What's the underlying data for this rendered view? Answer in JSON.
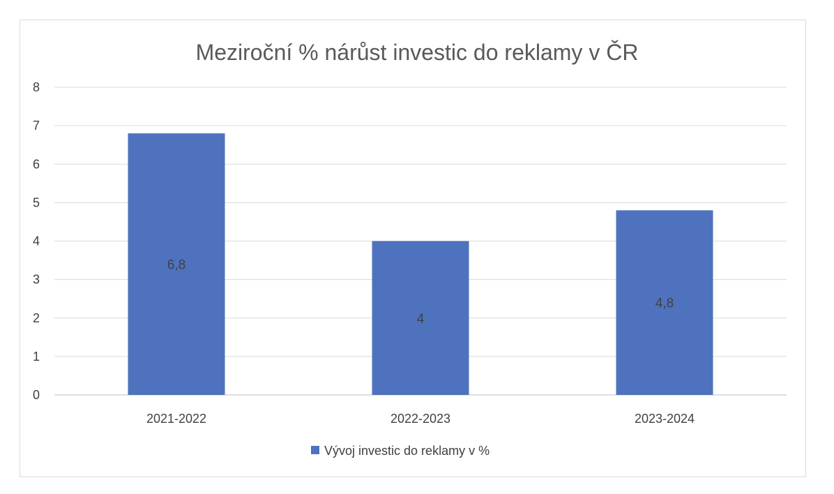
{
  "chart_data": {
    "type": "bar",
    "title": "Meziroční % nárůst investic do reklamy v ČR",
    "categories": [
      "2021-2022",
      "2022-2023",
      "2023-2024"
    ],
    "series": [
      {
        "name": "Vývoj investic do reklamy v %",
        "values": [
          6.8,
          4,
          4.8
        ],
        "data_labels": [
          "6,8",
          "4",
          "4,8"
        ],
        "color": "#4f72be"
      }
    ],
    "ylim": [
      0,
      8
    ],
    "yticks": [
      "0",
      "1",
      "2",
      "3",
      "4",
      "5",
      "6",
      "7",
      "8"
    ],
    "grid": true,
    "legend": "bottom",
    "colors": {
      "bar": "#4f72be",
      "grid": "#d9d9d9",
      "text": "#404040",
      "title": "#595959"
    }
  }
}
